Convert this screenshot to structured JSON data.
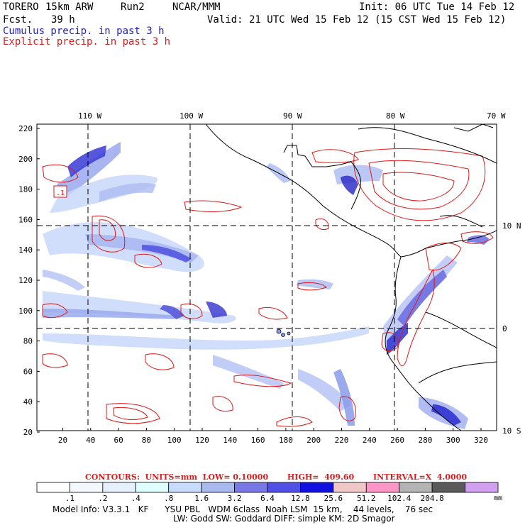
{
  "header": {
    "model": "TORERO",
    "resolution": "15km ARW",
    "run": "Run2",
    "center": "NCAR/MMM",
    "init": "Init: 06 UTC Tue 14 Feb 12",
    "fcst_label": "Fcst.",
    "fcst_value": "39 h",
    "valid": "Valid: 21 UTC Wed 15 Feb 12 (15 CST Wed 15 Feb 12)",
    "cumulus_label": "Cumulus precip. in past 3 h",
    "explicit_label": "Explicit precip. in past 3 h"
  },
  "map": {
    "lon_labels": [
      "110 W",
      "100 W",
      "90 W",
      "80 W",
      "70 W"
    ],
    "lat_labels": [
      "10 N",
      "0",
      "10 S"
    ],
    "y_ticks": [
      "220",
      "200",
      "180",
      "160",
      "140",
      "120",
      "100",
      "80",
      "60",
      "40",
      "20"
    ],
    "x_ticks": [
      "20",
      "40",
      "60",
      "80",
      "100",
      "120",
      "140",
      "160",
      "180",
      "200",
      "220",
      "240",
      "260",
      "280",
      "300",
      "320"
    ],
    "marker_label": ".1",
    "colors": {
      "cumulus": "#2020c8",
      "explicit": "#e01818",
      "grid": "#000000"
    }
  },
  "contours": {
    "text": "CONTOURS:  UNITS=mm  LOW= 0.10000       HIGH=  409.60       INTERVAL=X  4.0000"
  },
  "colorbar": {
    "labels": [
      ".1",
      ".2",
      ".4",
      ".8",
      "1.6",
      "3.2",
      "6.4",
      "12.8",
      "25.6",
      "51.2",
      "102.4",
      "204.8"
    ],
    "unit": "mm",
    "colors": [
      "#ffffff",
      "#f4f8ff",
      "#e6f0ff",
      "#e0ffff",
      "#c8dcff",
      "#aab8f0",
      "#7878e6",
      "#5050e6",
      "#1010e0",
      "#f0c8c8",
      "#ff96c8",
      "#b4b4b4",
      "#5a5a5a",
      "#d2a0f0"
    ]
  },
  "model_info": {
    "line1": "Model Info: V3.3.1   KF      YSU PBL   WDM 6class  Noah LSM  15 km,    44 levels,    76 sec",
    "line2": "LW: Godd SW: Goddard DIFF: simple KM: 2D Smagor"
  }
}
